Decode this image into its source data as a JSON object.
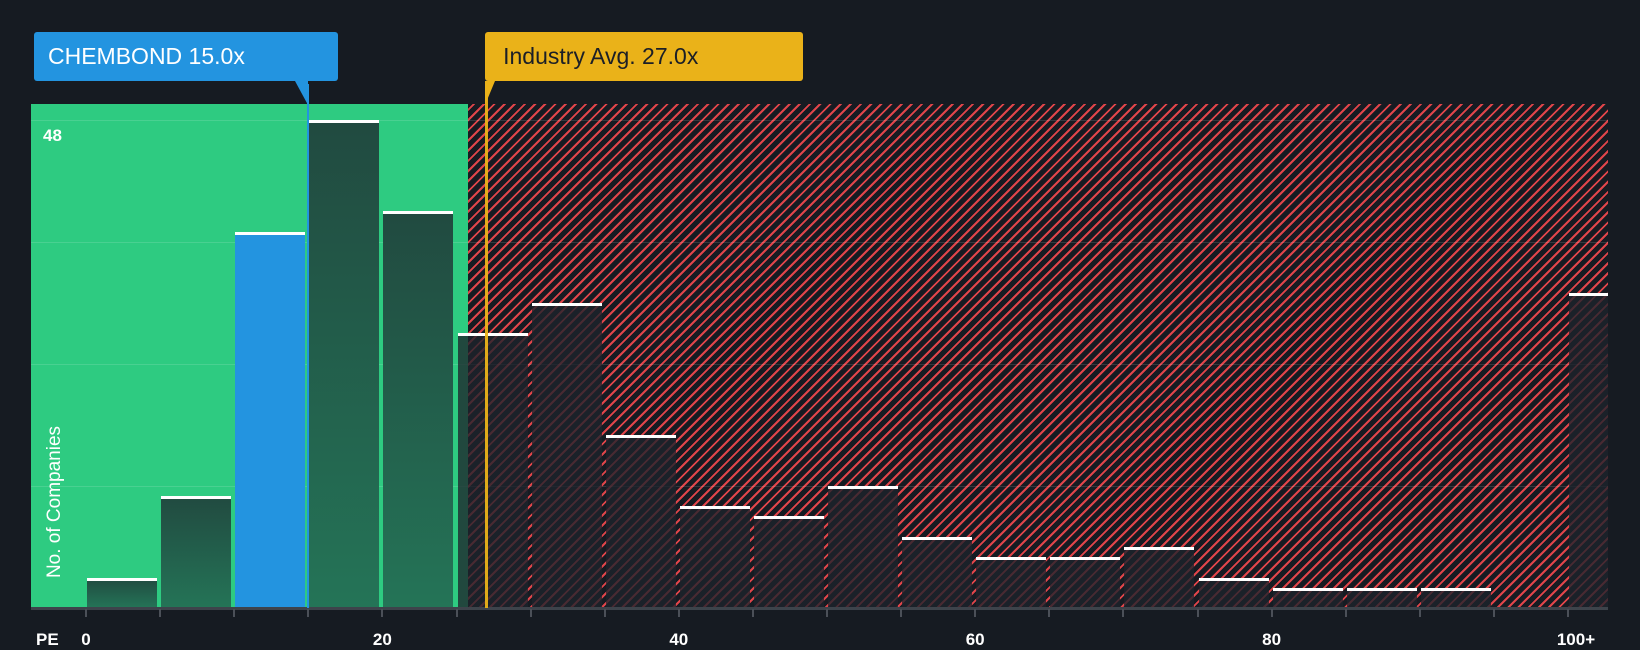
{
  "chart_data": {
    "type": "bar",
    "title": "",
    "xlabel": "PE",
    "ylabel": "No. of Companies",
    "x_tick_labels": [
      "0",
      "20",
      "40",
      "60",
      "80",
      "100+"
    ],
    "y_tick_labels": [
      "48"
    ],
    "ylim": [
      0,
      48
    ],
    "categories": [
      "0-5",
      "5-10",
      "10-15",
      "15-20",
      "20-25",
      "25-30",
      "30-35",
      "35-40",
      "40-45",
      "45-50",
      "50-55",
      "55-60",
      "60-65",
      "65-70",
      "70-75",
      "75-80",
      "80-85",
      "85-90",
      "90-95",
      "95-100",
      "100+"
    ],
    "values": [
      3,
      11,
      37,
      48,
      39,
      27,
      30,
      17,
      10,
      9,
      12,
      7,
      5,
      5,
      6,
      3,
      2,
      2,
      2,
      0,
      31
    ],
    "highlighted_bin": "10-15",
    "company": {
      "name": "CHEMBOND",
      "pe": 15.0,
      "label": "CHEMBOND 15.0x"
    },
    "industry_avg": {
      "pe": 27.0,
      "label": "Industry Avg. 27.0x"
    },
    "green_zone_upper_pe": 25.8,
    "grid": true,
    "legend": "none"
  },
  "labels": {
    "company_callout": "CHEMBOND 15.0x",
    "industry_callout": "Industry Avg. 27.0x",
    "y_max": "48",
    "y_title": "No. of Companies",
    "x_title": "PE",
    "x_ticks": [
      "0",
      "20",
      "40",
      "60",
      "80",
      "100+"
    ]
  },
  "colors": {
    "background": "#161b22",
    "green_zone": "#2ecb81",
    "red_hatch": "#e0454a",
    "company": "#2394e0",
    "industry": "#eab219"
  }
}
